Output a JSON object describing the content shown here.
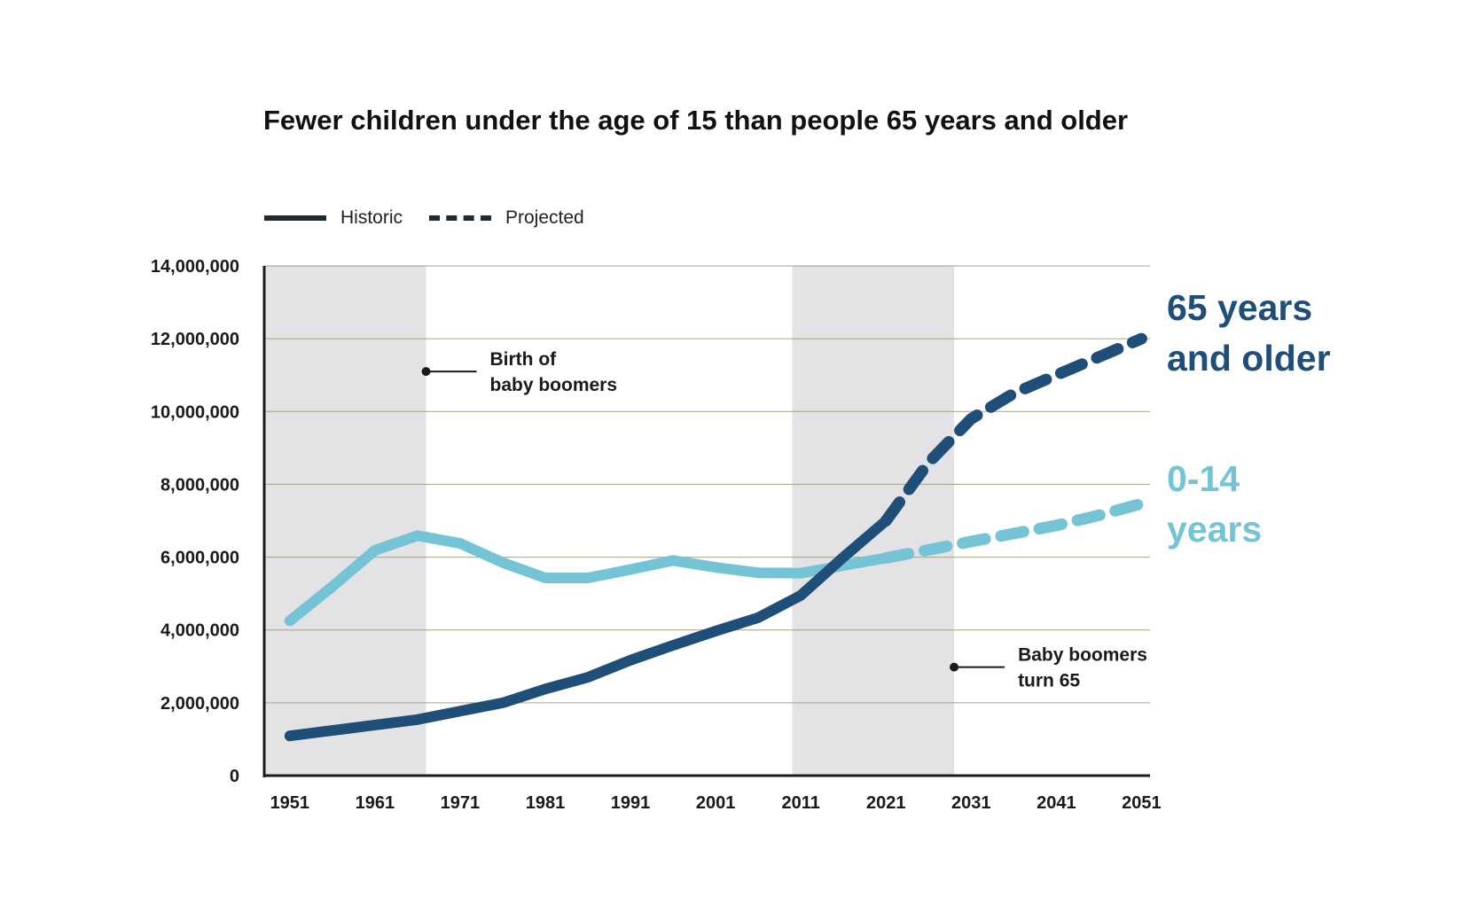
{
  "chart_data": {
    "type": "line",
    "title": "Fewer children under the age of 15 than people 65 years and older",
    "xlabel": "",
    "ylabel": "",
    "xlim": [
      1948,
      2052
    ],
    "ylim": [
      0,
      14000000
    ],
    "x_ticks": [
      1951,
      1961,
      1971,
      1981,
      1991,
      2001,
      2011,
      2021,
      2031,
      2041,
      2051
    ],
    "y_ticks": [
      0,
      2000000,
      4000000,
      6000000,
      8000000,
      10000000,
      12000000,
      14000000
    ],
    "y_tick_labels": [
      "0",
      "2,000,000",
      "4,000,000",
      "6,000,000",
      "8,000,000",
      "10,000,000",
      "12,000,000",
      "14,000,000"
    ],
    "grid": "horizontal",
    "legend": {
      "position": "top-left",
      "entries": [
        {
          "label": "Historic",
          "style": "solid"
        },
        {
          "label": "Projected",
          "style": "dashed"
        }
      ]
    },
    "shaded_periods": [
      [
        1948,
        1967
      ],
      [
        2010,
        2029
      ]
    ],
    "series": [
      {
        "name": "65 years and older",
        "color": "#1f4e79",
        "historic": {
          "x": [
            1951,
            1956,
            1961,
            1966,
            1971,
            1976,
            1981,
            1986,
            1991,
            1996,
            2001,
            2006,
            2011,
            2016,
            2021
          ],
          "y": [
            1090000,
            1240000,
            1390000,
            1540000,
            1770000,
            2000000,
            2380000,
            2700000,
            3170000,
            3580000,
            3970000,
            4340000,
            4950000,
            6000000,
            7000000
          ]
        },
        "projected": {
          "x": [
            2021,
            2026,
            2031,
            2036,
            2041,
            2046,
            2051
          ],
          "y": [
            7000000,
            8600000,
            9800000,
            10500000,
            11000000,
            11500000,
            12000000
          ]
        }
      },
      {
        "name": "0-14 years",
        "color": "#74c4d6",
        "historic": {
          "x": [
            1951,
            1956,
            1961,
            1966,
            1971,
            1976,
            1981,
            1986,
            1991,
            1996,
            2001,
            2006,
            2011,
            2016,
            2021
          ],
          "y": [
            4250000,
            5190000,
            6190000,
            6590000,
            6380000,
            5850000,
            5430000,
            5430000,
            5660000,
            5910000,
            5720000,
            5570000,
            5560000,
            5770000,
            5980000
          ]
        },
        "projected": {
          "x": [
            2021,
            2026,
            2031,
            2036,
            2041,
            2046,
            2051
          ],
          "y": [
            5980000,
            6200000,
            6430000,
            6650000,
            6870000,
            7150000,
            7470000
          ]
        }
      }
    ],
    "annotations": [
      {
        "text_lines": [
          "Birth of",
          "baby boomers"
        ],
        "x": 1967,
        "y": 11100000
      },
      {
        "text_lines": [
          "Baby boomers",
          "turn 65"
        ],
        "x": 2029,
        "y": 2980000
      }
    ]
  },
  "series_labels": {
    "older_line1": "65 years",
    "older_line2": "and older",
    "young_line1": "0-14",
    "young_line2": "years"
  }
}
